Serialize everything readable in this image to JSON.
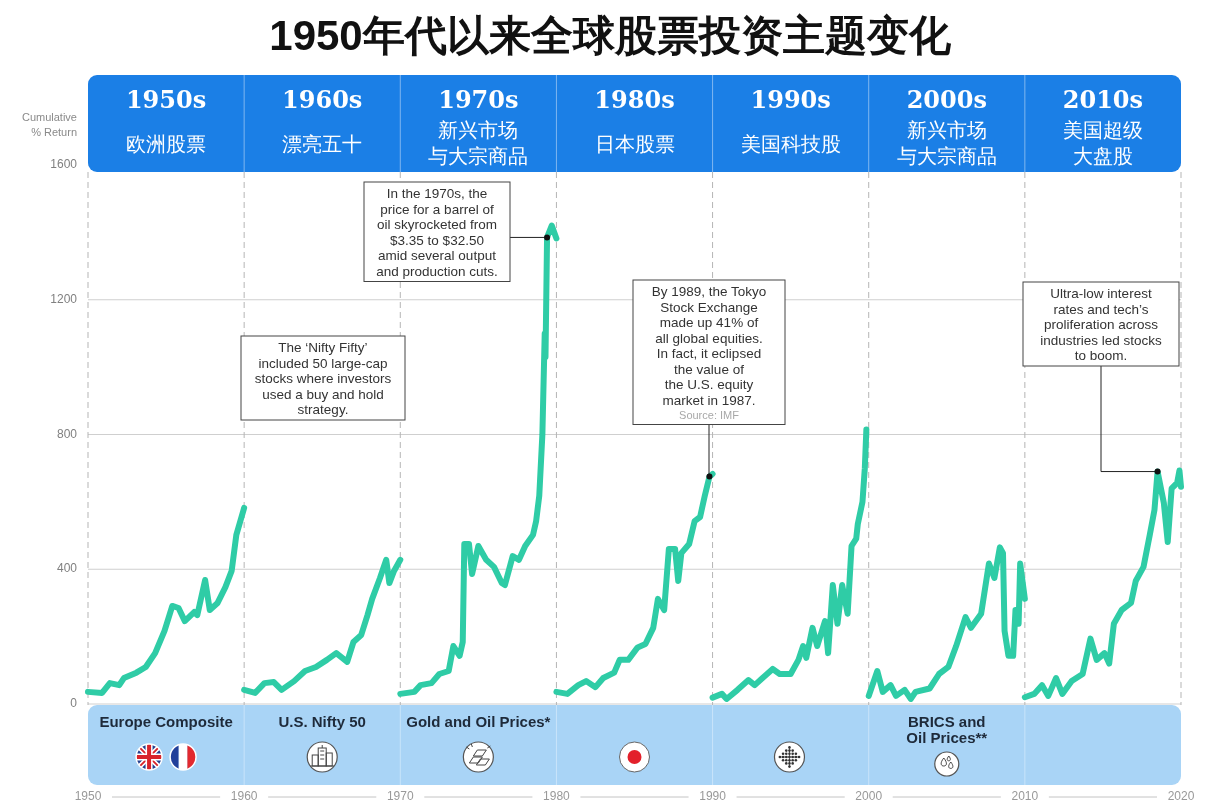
{
  "chart_data": {
    "type": "line",
    "title": "1950年代以来全球股票投资主题变化",
    "ylabel": "Cumulative\n% Return",
    "xlim": [
      1950,
      2020
    ],
    "xticks": [
      1950,
      1960,
      1970,
      1980,
      1990,
      2000,
      2010,
      2020
    ],
    "ylim": [
      0,
      1600
    ],
    "yticks": [
      0,
      400,
      800,
      1200,
      1600
    ],
    "grid": true,
    "series": [
      {
        "name": "Europe Composite",
        "color": "#2fcca6",
        "x": [
          1950,
          1950.9,
          1951.4,
          1952.0,
          1952.3,
          1953.1,
          1953.7,
          1954.3,
          1954.9,
          1955.4,
          1955.8,
          1956.2,
          1956.8,
          1957.0,
          1957.5,
          1957.8,
          1958.3,
          1958.8,
          1959.2,
          1959.5,
          1960.0
        ],
        "values": [
          36,
          33,
          62,
          56,
          77,
          93,
          110,
          151,
          217,
          291,
          285,
          246,
          273,
          264,
          368,
          279,
          300,
          347,
          395,
          502,
          582
        ]
      },
      {
        "name": "U.S. Nifty 50",
        "color": "#2fcca6",
        "x": [
          1960.0,
          1960.7,
          1961.3,
          1961.9,
          1962.4,
          1963.2,
          1963.9,
          1964.6,
          1965.3,
          1965.9,
          1966.6,
          1967.0,
          1967.5,
          1967.9,
          1968.2,
          1968.7,
          1969.1,
          1969.3,
          1969.6,
          1970.0
        ],
        "values": [
          42,
          33,
          62,
          65,
          42,
          68,
          98,
          110,
          131,
          151,
          125,
          184,
          205,
          264,
          312,
          374,
          428,
          359,
          395,
          428
        ]
      },
      {
        "name": "Gold and Oil Prices*",
        "color": "#2fcca6",
        "x": [
          1970.0,
          1970.9,
          1971.3,
          1972.0,
          1972.5,
          1973.1,
          1973.4,
          1973.8,
          1974.0,
          1974.1,
          1974.4,
          1974.6,
          1975.0,
          1975.5,
          1976.0,
          1976.5,
          1976.7,
          1977.2,
          1977.6,
          1978.0,
          1978.5,
          1978.7,
          1978.9,
          1979.1,
          1979.25,
          1979.3,
          1979.4,
          1979.7,
          1980.0
        ],
        "values": [
          30,
          36,
          56,
          62,
          89,
          98,
          172,
          143,
          184,
          475,
          475,
          386,
          469,
          428,
          407,
          359,
          353,
          439,
          428,
          469,
          502,
          543,
          618,
          800,
          1100,
          1030,
          1385,
          1420,
          1382
        ]
      },
      {
        "color": "#2fcca6",
        "x": [
          1980.0,
          1980.7,
          1981.4,
          1981.9,
          1982.5,
          1983.0,
          1983.7,
          1984.05,
          1984.6,
          1985.2,
          1985.7,
          1986.2,
          1986.5,
          1986.9,
          1987.2,
          1987.6,
          1987.8,
          1988.0,
          1988.5,
          1988.85,
          1989.2,
          1989.5,
          1989.8,
          1990.0
        ],
        "values": [
          36,
          30,
          56,
          68,
          50,
          77,
          93,
          131,
          131,
          168,
          178,
          226,
          312,
          279,
          460,
          460,
          365,
          448,
          475,
          543,
          555,
          618,
          675,
          683
        ]
      },
      {
        "color": "#2fcca6",
        "x": [
          1990.0,
          1990.6,
          1990.9,
          1991.6,
          1992.3,
          1992.7,
          1993.2,
          1993.85,
          1994.3,
          1995.0,
          1995.5,
          1995.8,
          1996.0,
          1996.4,
          1996.7,
          1997.2,
          1997.4,
          1997.7,
          1998.0,
          1998.3,
          1998.65,
          1998.9,
          1999.2,
          1999.3,
          1999.6,
          1999.75,
          1999.85
        ],
        "values": [
          19,
          30,
          15,
          42,
          71,
          56,
          77,
          104,
          89,
          89,
          131,
          172,
          137,
          226,
          172,
          246,
          151,
          353,
          238,
          353,
          268,
          469,
          491,
          534,
          600,
          700,
          815
        ]
      },
      {
        "name": "BRICS and\nOil Prices**",
        "color": "#2fcca6",
        "x": [
          2000.0,
          2000.55,
          2000.9,
          2001.4,
          2001.75,
          2002.3,
          2002.7,
          2003.0,
          2003.9,
          2004.5,
          2005.1,
          2005.6,
          2006.2,
          2006.55,
          2007.2,
          2007.7,
          2008.05,
          2008.4,
          2008.6,
          2008.7,
          2008.95,
          2009.25,
          2009.4,
          2009.6,
          2009.7,
          2010.0
        ],
        "values": [
          24,
          98,
          36,
          56,
          24,
          42,
          15,
          36,
          46,
          89,
          110,
          172,
          258,
          226,
          268,
          417,
          374,
          465,
          448,
          217,
          143,
          143,
          279,
          238,
          417,
          312
        ]
      },
      {
        "color": "#2fcca6",
        "x": [
          2010.0,
          2010.6,
          2011.1,
          2011.5,
          2012.0,
          2012.4,
          2013.0,
          2013.7,
          2014.2,
          2014.6,
          2015.1,
          2015.4,
          2015.7,
          2016.2,
          2016.8,
          2017.1,
          2017.6,
          2018.0,
          2018.3,
          2018.5,
          2018.9,
          2019.15,
          2019.4,
          2019.75,
          2019.9,
          2020.0
        ],
        "values": [
          20,
          30,
          56,
          24,
          77,
          30,
          68,
          89,
          194,
          131,
          151,
          120,
          238,
          279,
          300,
          365,
          407,
          502,
          576,
          690,
          597,
          481,
          640,
          656,
          693,
          645
        ]
      }
    ],
    "annotations": [
      "1950s\n欧洲股票",
      "1960s\n漂亮五十",
      "1970s\n新兴市场与大宗商品",
      "1980s\n日本股票",
      "1990s\n美国科技股",
      "2000s\n新兴市场与大宗商品",
      "2010s\n美国超级大盘股",
      "The ‘Nifty Fifty’\nincluded 50 large-cap\nstocks where investors\nused a buy and hold\nstrategy.",
      {
        "text": "In the 1970s, the\nprice for a barrel of\noil skyrocketed from\n$3.35 to $32.50\namid several output\nand production cuts.",
        "x": 1979.4,
        "y": 1385
      },
      {
        "text": "By 1989, the Tokyo\nStock Exchange\nmade up 41% of\nall global equities.\nIn fact, it eclipsed\nthe value of\nthe U.S. equity\nmarket in 1987.",
        "x": 1989.8,
        "y": 675
      },
      "Source: IMF",
      {
        "text": "Ultra-low interest\nrates and tech’s\nproliferation across\nindustries led stocks\nto boom.",
        "x": 2018.5,
        "y": 690
      }
    ]
  }
}
